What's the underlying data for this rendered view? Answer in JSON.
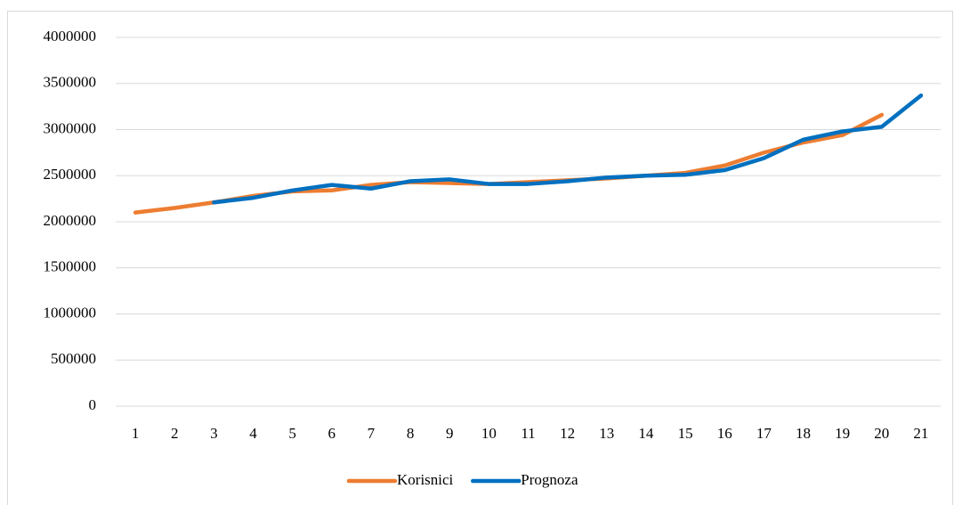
{
  "chart_data": {
    "type": "line",
    "categories": [
      "1",
      "2",
      "3",
      "4",
      "5",
      "6",
      "7",
      "8",
      "9",
      "10",
      "11",
      "12",
      "13",
      "14",
      "15",
      "16",
      "17",
      "18",
      "19",
      "20",
      "21"
    ],
    "series": [
      {
        "name": "Korisnici",
        "color": "#ed7d31",
        "values": [
          2100000,
          2150000,
          2210000,
          2280000,
          2330000,
          2340000,
          2400000,
          2430000,
          2420000,
          2410000,
          2430000,
          2450000,
          2470000,
          2500000,
          2530000,
          2610000,
          2750000,
          2860000,
          2940000,
          3160000,
          null
        ]
      },
      {
        "name": "Prognoza",
        "color": "#0070c0",
        "values": [
          null,
          null,
          2210000,
          2260000,
          2340000,
          2400000,
          2360000,
          2440000,
          2460000,
          2410000,
          2410000,
          2440000,
          2480000,
          2500000,
          2510000,
          2560000,
          2690000,
          2890000,
          2980000,
          3030000,
          3370000
        ]
      }
    ],
    "ylim": [
      0,
      4000000
    ],
    "yticks": [
      0,
      500000,
      1000000,
      1500000,
      2000000,
      2500000,
      3000000,
      3500000,
      4000000
    ],
    "grid": true,
    "legend": "bottom"
  }
}
